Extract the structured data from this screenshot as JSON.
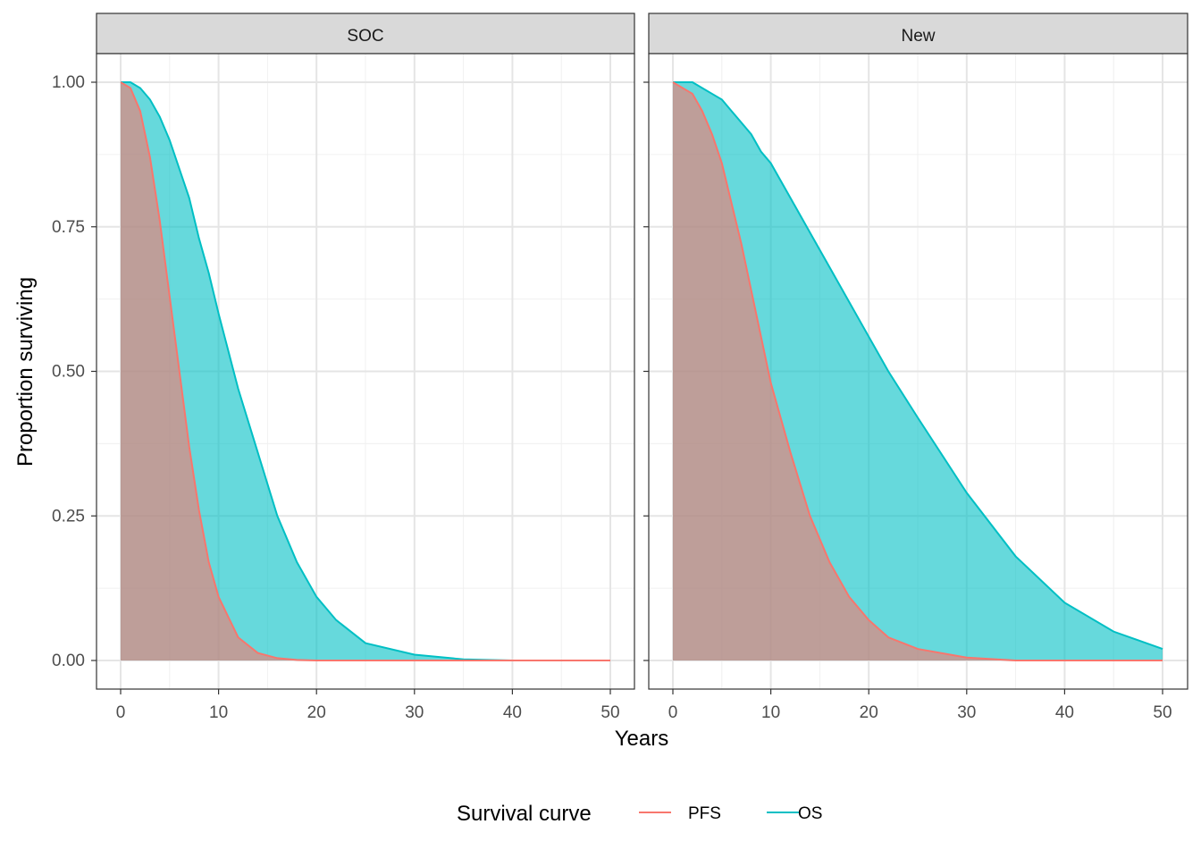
{
  "chart_data": {
    "type": "area",
    "facets": [
      "SOC",
      "New"
    ],
    "xlabel": "Years",
    "ylabel": "Proportion surviving",
    "xlim": [
      0,
      50
    ],
    "ylim": [
      0,
      1
    ],
    "x_ticks": [
      0,
      10,
      20,
      30,
      40,
      50
    ],
    "y_ticks": [
      0,
      0.25,
      0.5,
      0.75,
      1
    ],
    "y_tick_labels": [
      "0.00",
      "0.25",
      "0.50",
      "0.75",
      "1.00"
    ],
    "x_tick_labels": [
      "0",
      "10",
      "20",
      "30",
      "40",
      "50"
    ],
    "grid": true,
    "legend": {
      "title": "Survival curve",
      "position": "bottom",
      "entries": [
        {
          "name": "PFS",
          "color": "#F8766D"
        },
        {
          "name": "OS",
          "color": "#00BFC4"
        }
      ]
    },
    "x": [
      0,
      1,
      2,
      3,
      4,
      5,
      6,
      7,
      8,
      9,
      10,
      12,
      14,
      16,
      18,
      20,
      22,
      25,
      30,
      35,
      40,
      45,
      50
    ],
    "panels": [
      {
        "facet": "SOC",
        "series": [
          {
            "name": "PFS",
            "values": [
              1.0,
              0.99,
              0.95,
              0.87,
              0.76,
              0.63,
              0.5,
              0.37,
              0.26,
              0.17,
              0.11,
              0.04,
              0.013,
              0.004,
              0.001,
              0.0,
              0.0,
              0.0,
              0.0,
              0.0,
              0.0,
              0.0,
              0.0
            ]
          },
          {
            "name": "OS",
            "values": [
              1.0,
              1.0,
              0.99,
              0.97,
              0.94,
              0.9,
              0.85,
              0.8,
              0.73,
              0.67,
              0.6,
              0.47,
              0.36,
              0.25,
              0.17,
              0.11,
              0.07,
              0.03,
              0.01,
              0.002,
              0.0,
              0.0,
              0.0
            ]
          }
        ]
      },
      {
        "facet": "New",
        "series": [
          {
            "name": "PFS",
            "values": [
              1.0,
              0.99,
              0.98,
              0.95,
              0.91,
              0.86,
              0.79,
              0.72,
              0.64,
              0.56,
              0.48,
              0.36,
              0.25,
              0.17,
              0.11,
              0.07,
              0.04,
              0.02,
              0.005,
              0.0,
              0.0,
              0.0,
              0.0
            ]
          },
          {
            "name": "OS",
            "values": [
              1.0,
              1.0,
              1.0,
              0.99,
              0.98,
              0.97,
              0.95,
              0.93,
              0.91,
              0.88,
              0.86,
              0.8,
              0.74,
              0.68,
              0.62,
              0.56,
              0.5,
              0.42,
              0.29,
              0.18,
              0.1,
              0.05,
              0.02
            ]
          }
        ]
      }
    ]
  }
}
